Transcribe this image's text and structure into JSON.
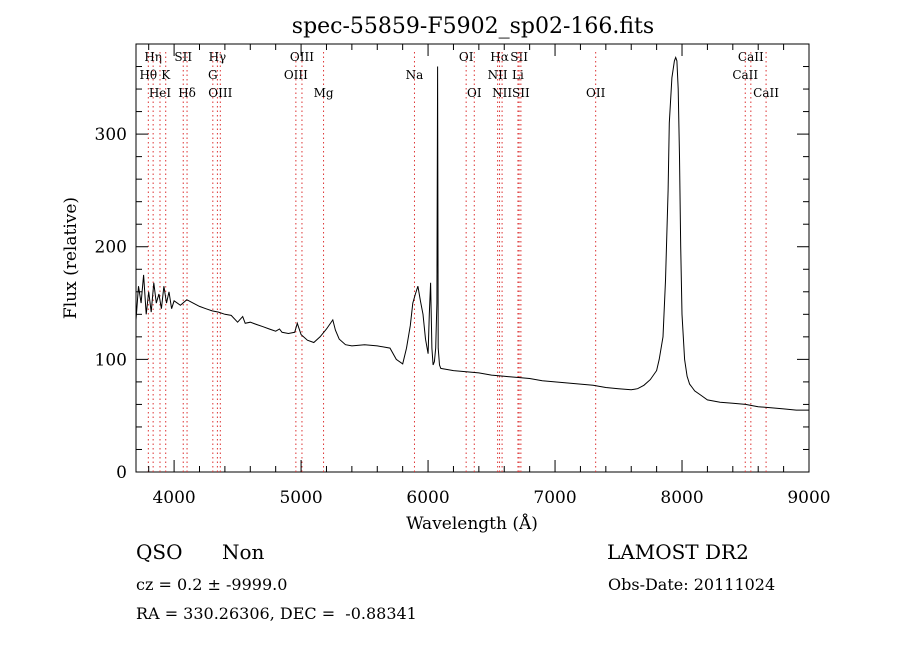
{
  "chart_data": {
    "type": "line",
    "title": "spec-55859-F5902_sp02-166.fits",
    "xlabel": "Wavelength (Å)",
    "ylabel": "Flux (relative)",
    "xlim": [
      3700,
      9000
    ],
    "ylim": [
      0,
      380
    ],
    "xticks": [
      4000,
      5000,
      6000,
      7000,
      8000,
      9000
    ],
    "yticks": [
      0,
      100,
      200,
      300
    ],
    "grid": false,
    "series": [
      {
        "x": [
          3700,
          3720,
          3740,
          3760,
          3780,
          3800,
          3820,
          3840,
          3860,
          3880,
          3900,
          3920,
          3940,
          3960,
          3980,
          4000,
          4050,
          4100,
          4150,
          4200,
          4250,
          4300,
          4350,
          4400,
          4450,
          4500,
          4540,
          4560,
          4600,
          4650,
          4700,
          4750,
          4800,
          4830,
          4850,
          4900,
          4950,
          4970,
          5000,
          5050,
          5100,
          5150,
          5200,
          5250,
          5270,
          5300,
          5350,
          5400,
          5500,
          5600,
          5700,
          5750,
          5800,
          5830,
          5860,
          5880,
          5900,
          5920,
          5940,
          5960,
          5980,
          6000,
          6010,
          6020,
          6030,
          6040,
          6050,
          6060,
          6070,
          6075,
          6080,
          6090,
          6100,
          6150,
          6200,
          6300,
          6400,
          6500,
          6600,
          6700,
          6800,
          6900,
          7000,
          7100,
          7200,
          7300,
          7400,
          7500,
          7600,
          7650,
          7700,
          7750,
          7800,
          7820,
          7850,
          7870,
          7890,
          7900,
          7920,
          7940,
          7950,
          7960,
          7970,
          7980,
          7990,
          8000,
          8020,
          8040,
          8060,
          8080,
          8100,
          8150,
          8200,
          8300,
          8400,
          8500,
          8600,
          8700,
          8800,
          8900,
          8980,
          9000
        ],
        "y": [
          135,
          165,
          150,
          175,
          140,
          160,
          142,
          168,
          150,
          158,
          145,
          165,
          150,
          160,
          145,
          152,
          148,
          153,
          150,
          147,
          145,
          143,
          142,
          140,
          139,
          133,
          138,
          132,
          133,
          131,
          129,
          127,
          125,
          127,
          124,
          123,
          124,
          132,
          122,
          117,
          115,
          120,
          127,
          135,
          126,
          118,
          113,
          112,
          113,
          112,
          110,
          100,
          96,
          110,
          130,
          150,
          158,
          165,
          152,
          140,
          118,
          105,
          140,
          168,
          110,
          95,
          98,
          110,
          150,
          360,
          110,
          95,
          92,
          91,
          90,
          89,
          88,
          86,
          85,
          84,
          83,
          81,
          80,
          79,
          78,
          77,
          75,
          74,
          73,
          74,
          77,
          82,
          90,
          100,
          120,
          170,
          250,
          310,
          350,
          365,
          368,
          365,
          340,
          280,
          200,
          140,
          100,
          85,
          78,
          75,
          72,
          68,
          64,
          62,
          61,
          60,
          58,
          57,
          56,
          55,
          55,
          55
        ]
      }
    ],
    "spectral_lines": [
      {
        "label": "Hη",
        "x": 3835,
        "row": 1
      },
      {
        "label": "Hθ",
        "x": 3797,
        "row": 2
      },
      {
        "label": "HeI",
        "x": 3889,
        "row": 3
      },
      {
        "label": "K",
        "x": 3934,
        "row": 2
      },
      {
        "label": "SII",
        "x": 4072,
        "row": 1
      },
      {
        "label": "Hδ",
        "x": 4102,
        "row": 3
      },
      {
        "label": "Hγ",
        "x": 4341,
        "row": 1
      },
      {
        "label": "G",
        "x": 4305,
        "row": 2
      },
      {
        "label": "OIII",
        "x": 4364,
        "row": 3
      },
      {
        "label": "OIII",
        "x": 4959,
        "row": 2
      },
      {
        "label": "OIII",
        "x": 5007,
        "row": 1
      },
      {
        "label": "Mg",
        "x": 5177,
        "row": 3
      },
      {
        "label": "Na",
        "x": 5893,
        "row": 2
      },
      {
        "label": "OI",
        "x": 6300,
        "row": 1
      },
      {
        "label": "OI",
        "x": 6364,
        "row": 3
      },
      {
        "label": "Hα",
        "x": 6563,
        "row": 1
      },
      {
        "label": "NII",
        "x": 6548,
        "row": 2
      },
      {
        "label": "NII",
        "x": 6583,
        "row": 3
      },
      {
        "label": "SII",
        "x": 6717,
        "row": 1
      },
      {
        "label": "Li",
        "x": 6708,
        "row": 2
      },
      {
        "label": "SII",
        "x": 6731,
        "row": 3
      },
      {
        "label": "OII",
        "x": 7320,
        "row": 3
      },
      {
        "label": "CaII",
        "x": 8542,
        "row": 1
      },
      {
        "label": "CaII",
        "x": 8498,
        "row": 2
      },
      {
        "label": "CaII",
        "x": 8662,
        "row": 3
      }
    ]
  },
  "info": {
    "class_label": "QSO",
    "subclass_label": "Non",
    "survey": "LAMOST DR2",
    "cz": "cz = 0.2 ± -9999.0",
    "obs_date": "Obs-Date: 20111024",
    "coords": "RA = 330.26306, DEC =  -0.88341"
  }
}
